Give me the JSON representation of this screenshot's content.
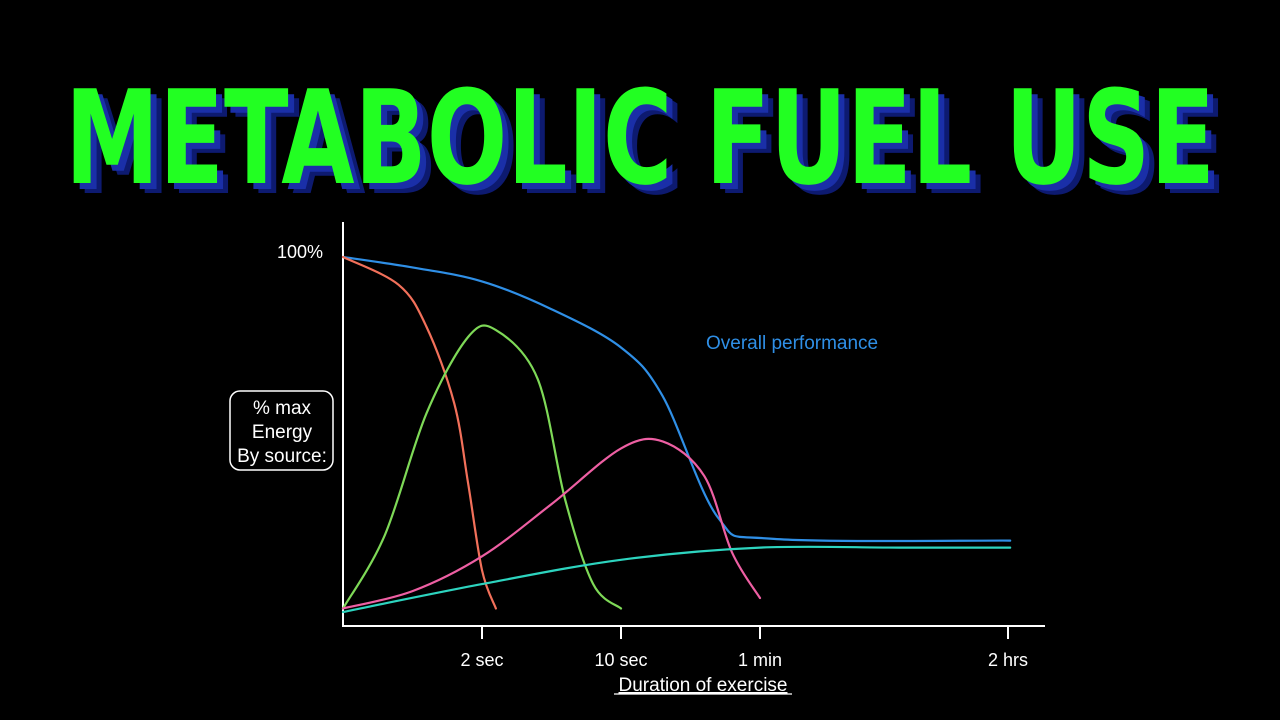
{
  "title": "METABOLIC FUEL USE",
  "colors": {
    "title_fill": "#22ff22",
    "title_shadow": "#1a2fa8",
    "axis": "#ffffff",
    "text": "#ffffff"
  },
  "chart_data": {
    "type": "line",
    "xlabel": "Duration of exercise",
    "ylabel": [
      "% max",
      "Energy",
      "By source:"
    ],
    "x_ticks": [
      "2 sec",
      "10 sec",
      "1 min",
      "2 hrs"
    ],
    "y_ticks": [
      "100%"
    ],
    "ylim": [
      0,
      100
    ],
    "grid": false,
    "annotation": "Overall performance",
    "series": [
      {
        "name": "Overall performance",
        "color": "#2f8fe6",
        "points": [
          [
            0,
            100
          ],
          [
            0.5,
            97
          ],
          [
            1,
            93
          ],
          [
            1.5,
            85
          ],
          [
            2,
            74
          ],
          [
            2.3,
            60
          ],
          [
            2.7,
            25
          ],
          [
            3.1,
            19
          ],
          [
            4.8,
            18.5
          ]
        ]
      },
      {
        "color": "#f2705a",
        "points": [
          [
            0,
            100
          ],
          [
            0.4,
            92
          ],
          [
            0.6,
            80
          ],
          [
            0.8,
            58
          ],
          [
            0.9,
            35
          ],
          [
            1,
            10
          ],
          [
            1.1,
            -1
          ]
        ]
      },
      {
        "color": "#7ed957",
        "points": [
          [
            0,
            -1
          ],
          [
            0.3,
            20
          ],
          [
            0.6,
            55
          ],
          [
            0.9,
            77
          ],
          [
            1.1,
            79
          ],
          [
            1.4,
            65
          ],
          [
            1.6,
            30
          ],
          [
            1.8,
            6
          ],
          [
            2,
            -1
          ]
        ]
      },
      {
        "color": "#ee5fa3",
        "points": [
          [
            0,
            -1
          ],
          [
            0.5,
            4
          ],
          [
            1,
            14
          ],
          [
            1.5,
            29
          ],
          [
            2,
            45
          ],
          [
            2.3,
            47
          ],
          [
            2.6,
            37
          ],
          [
            2.8,
            15
          ],
          [
            3,
            2
          ]
        ]
      },
      {
        "color": "#2dd4bf",
        "points": [
          [
            0,
            -2
          ],
          [
            1,
            6
          ],
          [
            2,
            13
          ],
          [
            3,
            16.5
          ],
          [
            4,
            16.5
          ],
          [
            4.8,
            16.5
          ]
        ]
      }
    ]
  }
}
